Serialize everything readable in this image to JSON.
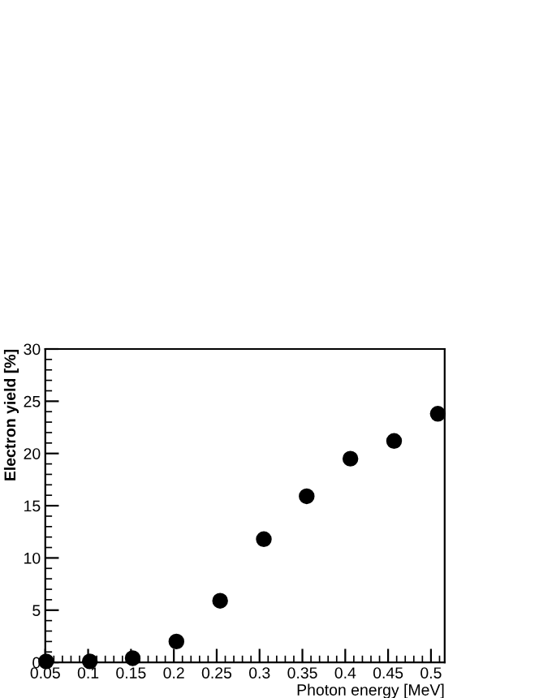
{
  "chart_data": {
    "type": "scatter",
    "xlabel": "Photon energy [MeV]",
    "ylabel": "Electron yield [%]",
    "x": [
      0.051,
      0.102,
      0.152,
      0.203,
      0.254,
      0.305,
      0.355,
      0.406,
      0.457,
      0.508
    ],
    "series": [
      {
        "color": "#000000",
        "values": [
          0.1,
          0.1,
          0.4,
          2.0,
          5.9,
          11.8,
          15.9,
          19.5,
          21.2,
          23.8
        ]
      }
    ],
    "xlim": [
      0.05,
      0.516
    ],
    "ylim": [
      0,
      30
    ],
    "xticks": [
      {
        "value": 0.05,
        "label": "0.05"
      },
      0.1,
      0.15,
      0.2,
      0.25,
      0.3,
      0.35,
      0.4,
      0.45,
      0.5
    ],
    "yticks": [
      0,
      5,
      10,
      15,
      20,
      25,
      30
    ],
    "marker": "circle",
    "grid": false,
    "legend": false
  }
}
